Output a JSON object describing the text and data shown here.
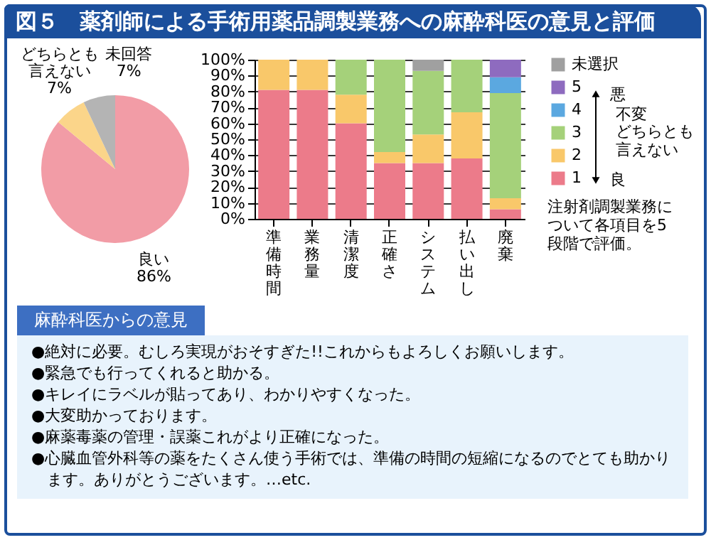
{
  "chart_data": [
    {
      "type": "pie",
      "title": "図５　薬剤師による手術用薬品調製業務への麻酔科医の意見と評価",
      "categories": [
        "良い",
        "どちらとも言えない",
        "未回答"
      ],
      "values": [
        86,
        7,
        7
      ],
      "colors": [
        "#f29ca6",
        "#fbd58a",
        "#b4b4b4"
      ],
      "value_labels": [
        "86%",
        "7%",
        "7%"
      ]
    },
    {
      "type": "bar",
      "stacked": true,
      "categories": [
        "準備時間",
        "業務量",
        "清潔度",
        "正確さ",
        "システム",
        "払い出し",
        "廃棄"
      ],
      "series": [
        {
          "name": "1",
          "color": "#ec7b8a",
          "values": [
            81,
            81,
            60,
            35,
            35,
            38,
            6
          ]
        },
        {
          "name": "2",
          "color": "#f9c86a",
          "values": [
            19,
            19,
            18,
            7,
            18,
            29,
            7
          ]
        },
        {
          "name": "3",
          "color": "#a5d17a",
          "values": [
            null,
            null,
            22,
            58,
            40,
            33,
            66
          ]
        },
        {
          "name": "4",
          "color": "#5ba8e0",
          "values": [
            null,
            null,
            null,
            null,
            null,
            null,
            10
          ]
        },
        {
          "name": "5",
          "color": "#8e6bbf",
          "values": [
            null,
            null,
            null,
            null,
            null,
            null,
            11
          ]
        },
        {
          "name": "未選択",
          "color": "#a0a0a0",
          "values": [
            null,
            null,
            null,
            null,
            7,
            null,
            null
          ]
        }
      ],
      "ylim": [
        0,
        100
      ],
      "yticks": [
        {
          "value": 0,
          "label": "0%"
        },
        {
          "value": 10,
          "label": "10%"
        },
        {
          "value": 20,
          "label": "20%"
        },
        {
          "value": 30,
          "label": "30%"
        },
        {
          "value": 40,
          "label": "40%"
        },
        {
          "value": 50,
          "label": "50%"
        },
        {
          "value": 60,
          "label": "60%"
        },
        {
          "value": 70,
          "label": "70%"
        },
        {
          "value": 80,
          "label": "80%"
        },
        {
          "value": 90,
          "label": "90%"
        },
        {
          "value": 100,
          "label": "100%"
        }
      ],
      "grid": "y",
      "legend": "right",
      "annotations": [
        "悪",
        "良",
        "不変",
        "どちらとも言えない",
        "注射剤調製業務について各項目を5段階で評価。"
      ]
    },
    {
      "type": "other",
      "title": "麻酔科医からの意見",
      "annotations": [
        "●絶対に必要。むしろ実現がおそすぎた!!これからもよろしくお願いします。",
        "●緊急でも行ってくれると助かる。",
        "●キレイにラベルが貼ってあり、わかりやすくなった。",
        "●大変助かっております。",
        "●麻薬毒薬の管理・誤薬これがより正確になった。",
        "●心臓血管外科等の薬をたくさん使う手術では、準備の時間の短縮になるのでとても助かります。ありがとうございます。…etc."
      ]
    }
  ]
}
